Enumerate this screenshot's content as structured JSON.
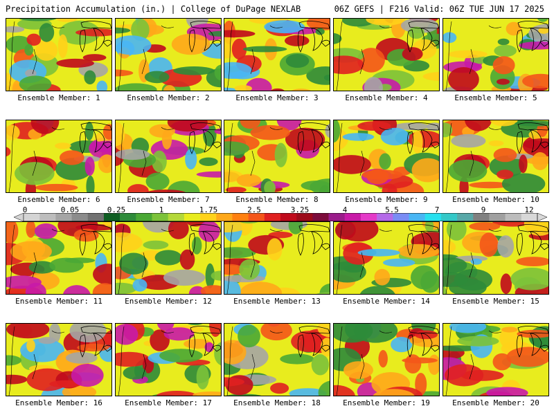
{
  "header": {
    "left_title": "Precipitation Accumulation (in.) | College of DuPage NEXLAB",
    "right_title": "06Z GEFS | F216 Valid: 06Z TUE JUN 17 2025"
  },
  "colorbar": {
    "tick_labels": [
      "0",
      "0.05",
      "0.25",
      "1",
      "1.75",
      "2.5",
      "3.25",
      "4",
      "5.5",
      "7",
      "9",
      "12"
    ],
    "colors": [
      "#d4d4d4",
      "#bdbdbd",
      "#a5a5a5",
      "#8c8c8c",
      "#727272",
      "#0f5e23",
      "#2e8b3a",
      "#4aa835",
      "#7cc23a",
      "#b4d83a",
      "#e8ec1e",
      "#ffd21a",
      "#ffa81a",
      "#ff8010",
      "#f4561a",
      "#e02020",
      "#c00a1c",
      "#9c0a1a",
      "#7c0c3c",
      "#9a1c8a",
      "#c81aa8",
      "#e43ac8",
      "#b46ae8",
      "#7a8cf4",
      "#49b6f4",
      "#28e0ee",
      "#34c8c8",
      "#58a8a8",
      "#808080",
      "#a0a0a0",
      "#bcbcbc",
      "#d8d8d8"
    ]
  },
  "members": [
    {
      "label": "Ensemble Member: 1"
    },
    {
      "label": "Ensemble Member: 2"
    },
    {
      "label": "Ensemble Member: 3"
    },
    {
      "label": "Ensemble Member: 4"
    },
    {
      "label": "Ensemble Member: 5"
    },
    {
      "label": "Ensemble Member: 6"
    },
    {
      "label": "Ensemble Member: 7"
    },
    {
      "label": "Ensemble Member: 8"
    },
    {
      "label": "Ensemble Member: 9"
    },
    {
      "label": "Ensemble Member: 10"
    },
    {
      "label": "Ensemble Member: 11"
    },
    {
      "label": "Ensemble Member: 12"
    },
    {
      "label": "Ensemble Member: 13"
    },
    {
      "label": "Ensemble Member: 14"
    },
    {
      "label": "Ensemble Member: 15"
    },
    {
      "label": "Ensemble Member: 16"
    },
    {
      "label": "Ensemble Member: 17"
    },
    {
      "label": "Ensemble Member: 18"
    },
    {
      "label": "Ensemble Member: 19"
    },
    {
      "label": "Ensemble Member: 20"
    }
  ]
}
